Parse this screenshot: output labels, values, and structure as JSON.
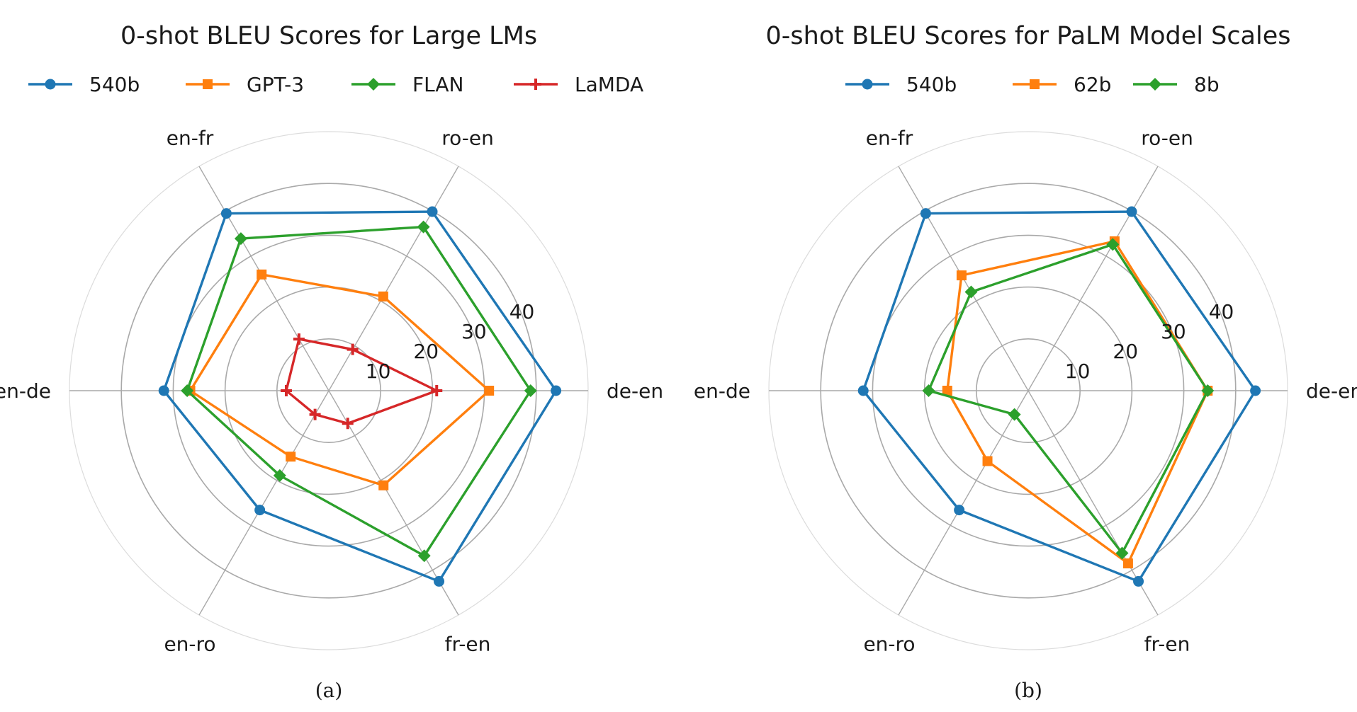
{
  "chart_data": [
    {
      "type": "radar",
      "title": "0-shot BLEU Scores for Large LMs",
      "caption": "(a)",
      "axes": [
        "de-en",
        "ro-en",
        "en-fr",
        "en-de",
        "en-ro",
        "fr-en"
      ],
      "rticks": [
        10,
        20,
        30,
        40
      ],
      "rlim": [
        0,
        50
      ],
      "grid": true,
      "legend_position": "top",
      "series": [
        {
          "name": "540b",
          "color": "#1f77b4",
          "marker": "circle",
          "values": [
            43.8,
            39.9,
            39.5,
            31.8,
            26.6,
            42.5
          ]
        },
        {
          "name": "GPT-3",
          "color": "#ff7f0e",
          "marker": "square",
          "values": [
            30.9,
            21.0,
            25.9,
            26.7,
            14.7,
            21.1
          ]
        },
        {
          "name": "FLAN",
          "color": "#2ca02c",
          "marker": "diamond",
          "values": [
            38.9,
            36.5,
            33.9,
            27.3,
            18.9,
            36.8
          ]
        },
        {
          "name": "LaMDA",
          "color": "#d62728",
          "marker": "plus",
          "values": [
            20.8,
            9.2,
            11.5,
            8.2,
            5.3,
            7.3
          ]
        }
      ]
    },
    {
      "type": "radar",
      "title": "0-shot BLEU Scores for PaLM Model Scales",
      "caption": "(b)",
      "axes": [
        "de-en",
        "ro-en",
        "en-fr",
        "en-de",
        "en-ro",
        "fr-en"
      ],
      "rticks": [
        10,
        20,
        30,
        40
      ],
      "rlim": [
        0,
        50
      ],
      "grid": true,
      "legend_position": "top",
      "series": [
        {
          "name": "540b",
          "color": "#1f77b4",
          "marker": "circle",
          "values": [
            43.8,
            39.9,
            39.5,
            31.8,
            26.6,
            42.5
          ]
        },
        {
          "name": "62b",
          "color": "#ff7f0e",
          "marker": "square",
          "values": [
            34.6,
            33.3,
            25.7,
            15.6,
            15.7,
            38.5
          ]
        },
        {
          "name": "8b",
          "color": "#2ca02c",
          "marker": "diamond",
          "values": [
            34.6,
            32.6,
            22.0,
            19.2,
            5.3,
            36.2
          ]
        }
      ]
    }
  ]
}
